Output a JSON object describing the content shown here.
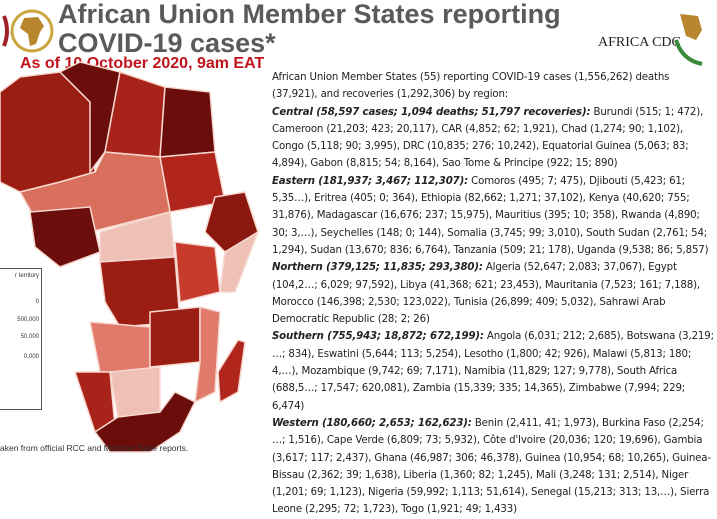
{
  "header": {
    "title_line1": "African Union Member States reporting",
    "title_line2": "COVID-19 cases*",
    "as_of": "As of 10 October 2020, 9am EAT",
    "cdc_logo_text": "AFRICA CDC"
  },
  "summary": "African Union Member States (55) reporting COVID-19 cases (1,556,262) deaths (37,921), and recoveries (1,292,306) by region:",
  "regions": [
    {
      "head": "Central (58,597 cases; 1,094 deaths; 51,797 recoveries):",
      "body": "Burundi (515; 1; 472), Cameroon (21,203; 423; 20,117), CAR (4,852; 62; 1,921), Chad (1,274; 90; 1,102), Congo (5,118; 90; 3,995), DRC (10,835; 276; 10,242), Equatorial Guinea (5,063; 83; 4,894), Gabon (8,815; 54; 8,164), Sao Tome & Principe (922; 15; 890)"
    },
    {
      "head": "Eastern (181,937; 3,467; 112,307):",
      "body": "Comoros (495; 7; 475), Djibouti (5,423; 61; 5,35…), Eritrea (405; 0; 364), Ethiopia (82,662; 1,271; 37,102), Kenya (40,620; 755; 31,876), Madagascar (16,676; 237; 15,975), Mauritius (395; 10; 358), Rwanda (4,890; 30; 3,…), Seychelles (148; 0; 144), Somalia (3,745; 99; 3,010), South Sudan (2,761; 54; 1,294), Sudan (13,670; 836; 6,764), Tanzania (509; 21; 178), Uganda (9,538; 86; 5,857)"
    },
    {
      "head": "Northern (379,125; 11,835; 293,380):",
      "body": "Algeria (52,647; 2,083; 37,067), Egypt (104,2…; 6,029; 97,592), Libya (41,368; 621; 23,453), Mauritania (7,523; 161; 7,188), Morocco (146,398; 2,530; 123,022), Tunisia (26,899; 409; 5,032), Sahrawi Arab Democratic Republic (28; 2; 26)"
    },
    {
      "head": "Southern (755,943; 18,872; 672,199):",
      "body": "Angola (6,031; 212; 2,685), Botswana (3,219; …; 834), Eswatini (5,644; 113; 5,254), Lesotho (1,800; 42; 926), Malawi (5,813; 180; 4,…), Mozambique (9,742; 69; 7,171), Namibia (11,829; 127; 9,778), South Africa (688,5…; 17,547; 620,081), Zambia (15,339; 335; 14,365), Zimbabwe (7,994; 229; 6,474)"
    },
    {
      "head": "Western (180,660; 2,653; 162,623):",
      "body": "Benin (2,411, 41; 1,973), Burkina Faso (2,254; …; 1,516), Cape Verde (6,809; 73; 5,932), Côte d'Ivoire (20,036; 120; 19,696), Gambia (3,617; 117; 2,437), Ghana (46,987; 306; 46,378), Guinea (10,954; 68; 10,265), Guinea-Bissau (2,362; 39; 1,638), Liberia (1,360; 82; 1,245), Mali (3,248; 131; 2,514), Niger (1,201; 69; 1,123), Nigeria (59,992; 1,113; 51,614), Senegal (15,213; 313; 13,…), Sierra Leone (2,295; 72; 1,723), Togo (1,921; 49; 1,433)"
    }
  ],
  "legend": {
    "title": "r territory",
    "items": [
      "0",
      "500,000",
      "50,000",
      "0,000"
    ]
  },
  "source": "aken from official RCC and Member State reports.",
  "colors": {
    "title": "#5a5a5a",
    "date": "#c0141c",
    "dark": "#6b0d0a",
    "mid": "#b0261c",
    "light": "#e07a6a",
    "pale": "#efc0b6"
  }
}
